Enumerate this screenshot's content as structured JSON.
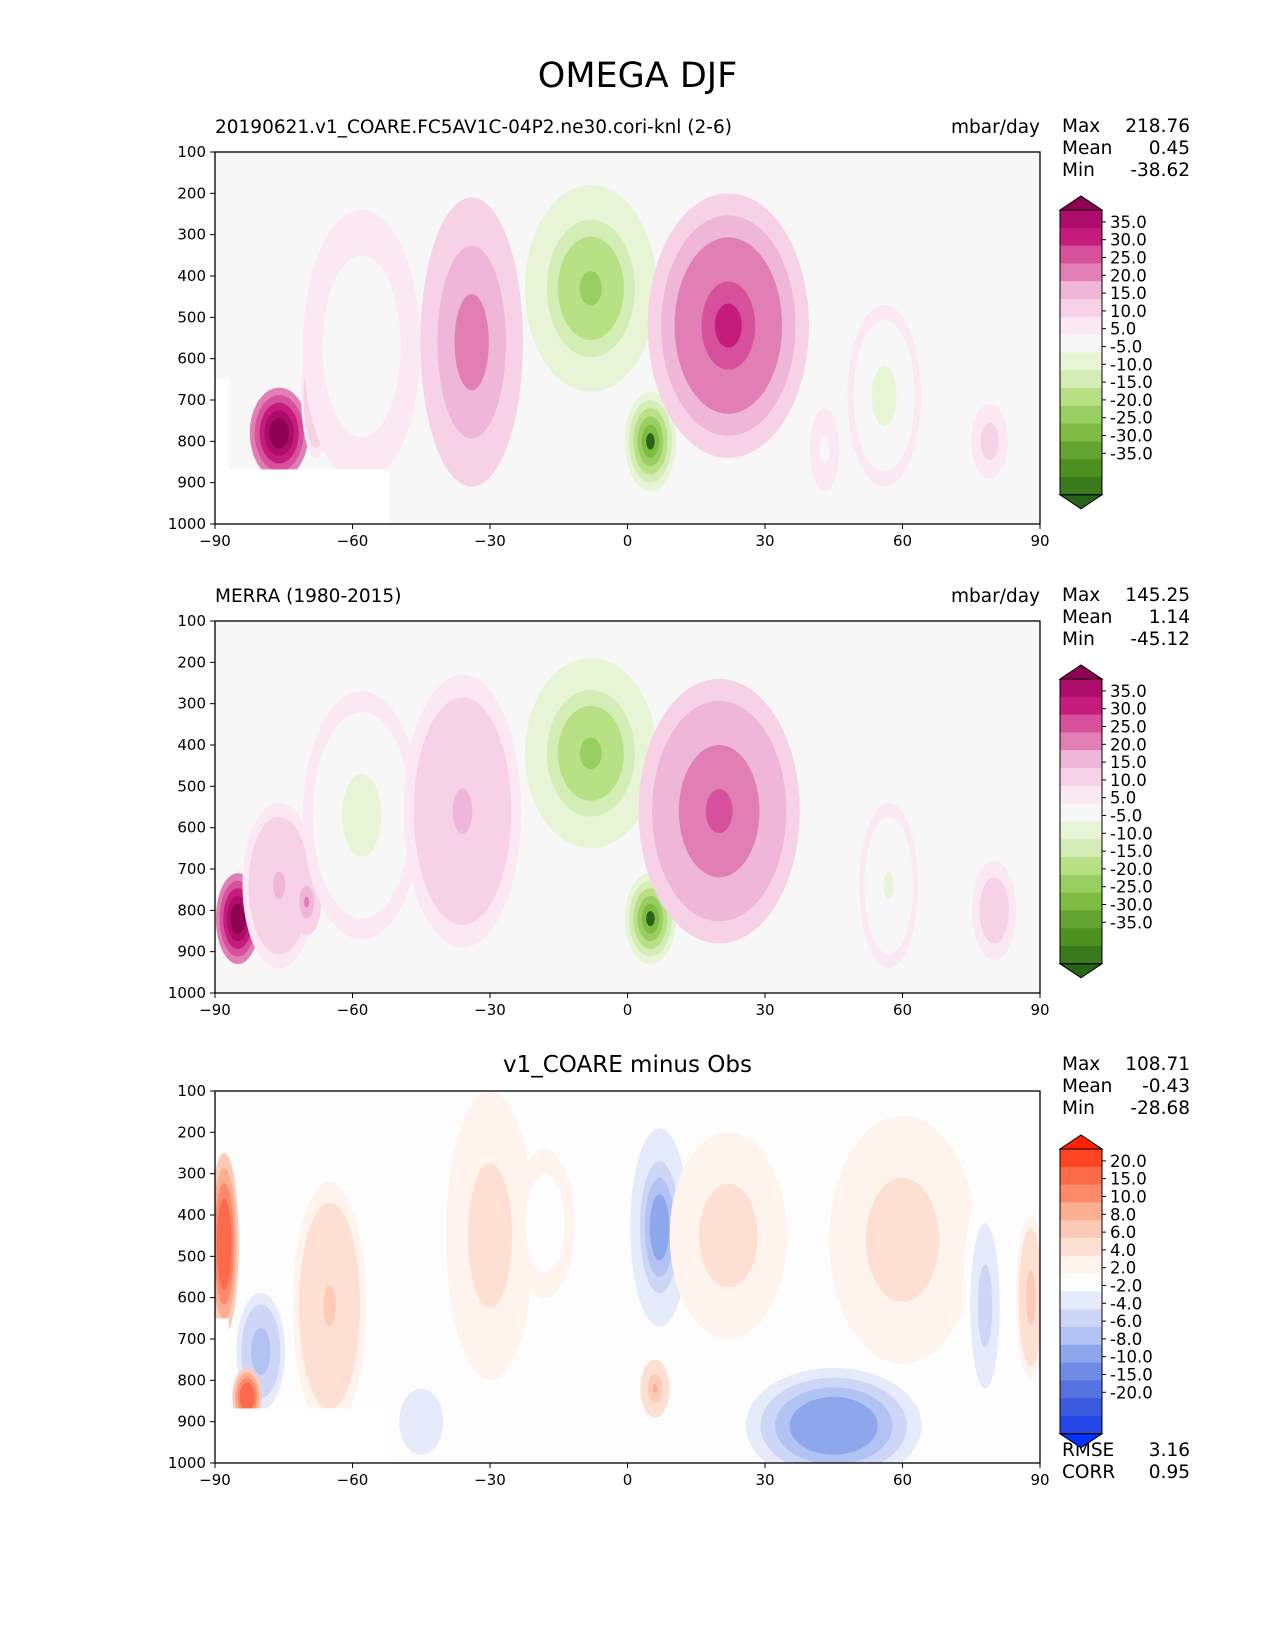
{
  "title": "OMEGA DJF",
  "chart_data": [
    {
      "type": "heatmap",
      "title": "20190621.v1_COARE.FC5AV1C-04P2.ne30.cori-knl (2-6)",
      "units": "mbar/day",
      "xlabel": "",
      "ylabel": "",
      "xlim": [
        -90,
        90
      ],
      "ylim": [
        1000,
        100
      ],
      "x_ticks": [
        "−90",
        "−60",
        "−30",
        "0",
        "30",
        "60",
        "90"
      ],
      "y_ticks": [
        "100",
        "200",
        "300",
        "400",
        "500",
        "600",
        "700",
        "800",
        "900",
        "1000"
      ],
      "stats": [
        {
          "label": "Max",
          "value": "218.76"
        },
        {
          "label": "Mean",
          "value": "0.45"
        },
        {
          "label": "Min",
          "value": "-38.62"
        }
      ],
      "colorbar": {
        "labels": [
          "35.0",
          "30.0",
          "25.0",
          "20.0",
          "15.0",
          "10.0",
          "5.0",
          "-5.0",
          "-10.0",
          "-15.0",
          "-20.0",
          "-25.0",
          "-30.0",
          "-35.0"
        ],
        "colors": [
          "#8e0152",
          "#ad0c6b",
          "#c51b7d",
          "#d6509c",
          "#e17fb5",
          "#f0b6d8",
          "#f7d2e6",
          "#fbe8f2",
          "#f7f7f7",
          "#e8f4d6",
          "#d4edb6",
          "#b8e186",
          "#99cf62",
          "#7fbc41",
          "#62a332",
          "#4d9221",
          "#3a7a1c",
          "#276419"
        ]
      },
      "features": [
        {
          "x": -76,
          "p": 780,
          "w": 4,
          "h": 110,
          "v": 40
        },
        {
          "x": -68,
          "p": 690,
          "w": 2,
          "h": 150,
          "v": 11
        },
        {
          "x": -58,
          "p": 570,
          "w": 8,
          "h": 330,
          "v": -10
        },
        {
          "x": -34,
          "p": 560,
          "w": 7,
          "h": 350,
          "v": 18
        },
        {
          "x": -8,
          "p": 430,
          "w": 9,
          "h": 250,
          "v": -28
        },
        {
          "x": 5,
          "p": 800,
          "w": 3.5,
          "h": 120,
          "v": -38
        },
        {
          "x": 22,
          "p": 520,
          "w": 11,
          "h": 320,
          "v": 25
        },
        {
          "x": 56,
          "p": 690,
          "w": 5,
          "h": 220,
          "v": -12
        },
        {
          "x": 79,
          "p": 800,
          "w": 2.5,
          "h": 90,
          "v": 7
        },
        {
          "x": 43,
          "p": 820,
          "w": 2,
          "h": 100,
          "v": -6
        }
      ],
      "masks": [
        {
          "x0": -90,
          "x1": -52,
          "p0": 868,
          "p1": 1000
        },
        {
          "x0": -90,
          "x1": -87,
          "p0": 650,
          "p1": 1000
        }
      ]
    },
    {
      "type": "heatmap",
      "title": "MERRA (1980-2015)",
      "units": "mbar/day",
      "xlabel": "",
      "ylabel": "",
      "xlim": [
        -90,
        90
      ],
      "ylim": [
        1000,
        100
      ],
      "x_ticks": [
        "−90",
        "−60",
        "−30",
        "0",
        "30",
        "60",
        "90"
      ],
      "y_ticks": [
        "100",
        "200",
        "300",
        "400",
        "500",
        "600",
        "700",
        "800",
        "900",
        "1000"
      ],
      "stats": [
        {
          "label": "Max",
          "value": "145.25"
        },
        {
          "label": "Mean",
          "value": "1.14"
        },
        {
          "label": "Min",
          "value": "-45.12"
        }
      ],
      "colorbar": {
        "labels": [
          "35.0",
          "30.0",
          "25.0",
          "20.0",
          "15.0",
          "10.0",
          "5.0",
          "-5.0",
          "-10.0",
          "-15.0",
          "-20.0",
          "-25.0",
          "-30.0",
          "-35.0"
        ],
        "colors": [
          "#8e0152",
          "#ad0c6b",
          "#c51b7d",
          "#d6509c",
          "#e17fb5",
          "#f0b6d8",
          "#f7d2e6",
          "#fbe8f2",
          "#f7f7f7",
          "#e8f4d6",
          "#d4edb6",
          "#b8e186",
          "#99cf62",
          "#7fbc41",
          "#62a332",
          "#4d9221",
          "#3a7a1c",
          "#276419"
        ]
      },
      "features": [
        {
          "x": -85,
          "p": 820,
          "w": 3,
          "h": 110,
          "v": 45
        },
        {
          "x": -76,
          "p": 740,
          "w": 5,
          "h": 200,
          "v": 10
        },
        {
          "x": -70,
          "p": 780,
          "w": 2,
          "h": 80,
          "v": 15
        },
        {
          "x": -58,
          "p": 570,
          "w": 8,
          "h": 300,
          "v": -12
        },
        {
          "x": -36,
          "p": 560,
          "w": 8,
          "h": 330,
          "v": 11
        },
        {
          "x": -8,
          "p": 420,
          "w": 9,
          "h": 230,
          "v": -28
        },
        {
          "x": 5,
          "p": 820,
          "w": 3.5,
          "h": 110,
          "v": -40
        },
        {
          "x": 20,
          "p": 560,
          "w": 11,
          "h": 320,
          "v": 22
        },
        {
          "x": 57,
          "p": 740,
          "w": 4,
          "h": 200,
          "v": -11
        },
        {
          "x": 80,
          "p": 800,
          "w": 3,
          "h": 120,
          "v": 9
        }
      ],
      "masks": []
    },
    {
      "type": "heatmap",
      "title": "v1_COARE minus Obs",
      "units": "",
      "xlabel": "",
      "ylabel": "",
      "xlim": [
        -90,
        90
      ],
      "ylim": [
        1000,
        100
      ],
      "x_ticks": [
        "−90",
        "−60",
        "−30",
        "0",
        "30",
        "60",
        "90"
      ],
      "y_ticks": [
        "100",
        "200",
        "300",
        "400",
        "500",
        "600",
        "700",
        "800",
        "900",
        "1000"
      ],
      "stats": [
        {
          "label": "Max",
          "value": "108.71"
        },
        {
          "label": "Mean",
          "value": "-0.43"
        },
        {
          "label": "Min",
          "value": "-28.68"
        }
      ],
      "extra_stats": [
        {
          "label": "RMSE",
          "value": "3.16"
        },
        {
          "label": "CORR",
          "value": "0.95"
        }
      ],
      "colorbar": {
        "labels": [
          "20.0",
          "15.0",
          "10.0",
          "8.0",
          "6.0",
          "4.0",
          "2.0",
          "-2.0",
          "-4.0",
          "-6.0",
          "-8.0",
          "-10.0",
          "-15.0",
          "-20.0"
        ],
        "colors": [
          "#ff2200",
          "#ff4422",
          "#fb6a4a",
          "#fc8a6a",
          "#fcae91",
          "#fdcab7",
          "#fee0d2",
          "#fff3ee",
          "#fdfdfd",
          "#e6ebfb",
          "#cdd6f7",
          "#b2c2f2",
          "#8ea6ec",
          "#6f8be6",
          "#5473e0",
          "#3a5be0",
          "#2447e8",
          "#0033ff"
        ]
      },
      "features": [
        {
          "x": -88,
          "p": 470,
          "w": 2,
          "h": 220,
          "v": 14
        },
        {
          "x": -80,
          "p": 730,
          "w": 4,
          "h": 170,
          "v": -10
        },
        {
          "x": -83,
          "p": 840,
          "w": 2,
          "h": 70,
          "v": 14
        },
        {
          "x": -65,
          "p": 620,
          "w": 5,
          "h": 300,
          "v": 4
        },
        {
          "x": -45,
          "p": 900,
          "w": 6,
          "h": 160,
          "v": -6
        },
        {
          "x": -30,
          "p": 450,
          "w": 6,
          "h": 350,
          "v": 3
        },
        {
          "x": -18,
          "p": 420,
          "w": 4,
          "h": 180,
          "v": -4
        },
        {
          "x": 7,
          "p": 430,
          "w": 4,
          "h": 240,
          "v": -12
        },
        {
          "x": 6,
          "p": 820,
          "w": 2,
          "h": 70,
          "v": 6
        },
        {
          "x": 22,
          "p": 450,
          "w": 8,
          "h": 250,
          "v": 3
        },
        {
          "x": 45,
          "p": 910,
          "w": 12,
          "h": 140,
          "v": -14
        },
        {
          "x": 60,
          "p": 460,
          "w": 10,
          "h": 300,
          "v": 3
        },
        {
          "x": 78,
          "p": 620,
          "w": 3,
          "h": 300,
          "v": -7
        },
        {
          "x": 88,
          "p": 600,
          "w": 2,
          "h": 200,
          "v": 5
        }
      ],
      "masks": [
        {
          "x0": -90,
          "x1": -52,
          "p0": 868,
          "p1": 1000
        },
        {
          "x0": -90,
          "x1": -87,
          "p0": 650,
          "p1": 1000
        }
      ]
    }
  ]
}
